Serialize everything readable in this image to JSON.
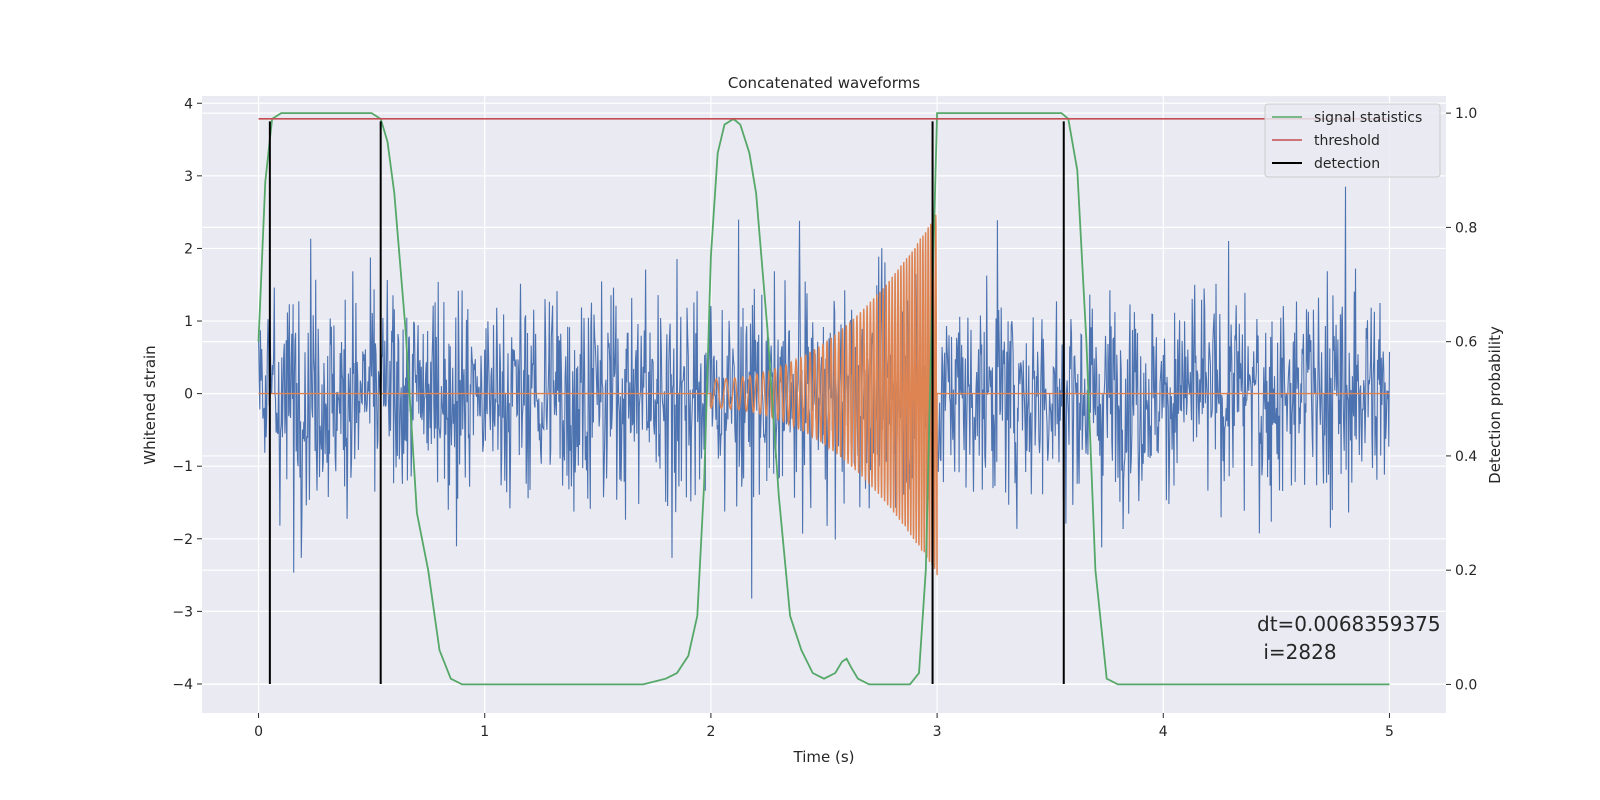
{
  "chart_data": {
    "type": "line",
    "title": "Concatenated waveforms",
    "xlabel": "Time (s)",
    "ylabel_left": "Whitened strain",
    "ylabel_right": "Detection probability",
    "xlim": [
      -0.25,
      5.25
    ],
    "ylim_left": [
      -4.4,
      4.1
    ],
    "ylim_right": [
      -0.05,
      1.03
    ],
    "xticks": [
      0,
      1,
      2,
      3,
      4,
      5
    ],
    "xtick_labels": [
      "0",
      "1",
      "2",
      "3",
      "4",
      "5"
    ],
    "yticks_left": [
      -4,
      -3,
      -2,
      -1,
      0,
      1,
      2,
      3,
      4
    ],
    "ytick_labels_left": [
      "−4",
      "−3",
      "−2",
      "−1",
      "0",
      "1",
      "2",
      "3",
      "4"
    ],
    "yticks_right": [
      0.0,
      0.2,
      0.4,
      0.6,
      0.8,
      1.0
    ],
    "ytick_labels_right": [
      "0.0",
      "0.2",
      "0.4",
      "0.6",
      "0.8",
      "1.0"
    ],
    "grid": true,
    "legend_position": "top-right",
    "colors": {
      "background": "#eaeaf2",
      "strain": "#4c72b0",
      "template": "#dd8452",
      "signal_statistics": "#55a868",
      "threshold": "#c44e52",
      "detection": "#000000"
    },
    "series": [
      {
        "name": "signal statistics",
        "axis": "right",
        "x": [
          0.0,
          0.03,
          0.06,
          0.1,
          0.15,
          0.25,
          0.4,
          0.5,
          0.54,
          0.57,
          0.6,
          0.65,
          0.7,
          0.75,
          0.8,
          0.85,
          0.9,
          1.0,
          1.2,
          1.5,
          1.7,
          1.8,
          1.85,
          1.9,
          1.94,
          1.97,
          2.0,
          2.03,
          2.06,
          2.1,
          2.13,
          2.17,
          2.2,
          2.25,
          2.3,
          2.35,
          2.4,
          2.45,
          2.5,
          2.55,
          2.58,
          2.6,
          2.62,
          2.65,
          2.7,
          2.8,
          2.88,
          2.92,
          2.95,
          2.98,
          3.0,
          3.05,
          3.1,
          3.3,
          3.5,
          3.55,
          3.58,
          3.62,
          3.66,
          3.7,
          3.75,
          3.8,
          4.0,
          4.3,
          4.5,
          4.7,
          5.0
        ],
        "y": [
          0.6,
          0.88,
          0.99,
          1.0,
          1.0,
          1.0,
          1.0,
          1.0,
          0.99,
          0.95,
          0.86,
          0.62,
          0.3,
          0.2,
          0.06,
          0.01,
          0.0,
          0.0,
          0.0,
          0.0,
          0.0,
          0.01,
          0.02,
          0.05,
          0.12,
          0.35,
          0.75,
          0.93,
          0.98,
          0.99,
          0.98,
          0.93,
          0.86,
          0.62,
          0.33,
          0.12,
          0.06,
          0.02,
          0.01,
          0.02,
          0.04,
          0.045,
          0.03,
          0.01,
          0.0,
          0.0,
          0.0,
          0.02,
          0.2,
          0.7,
          1.0,
          1.0,
          1.0,
          1.0,
          1.0,
          1.0,
          0.99,
          0.9,
          0.6,
          0.2,
          0.01,
          0.0,
          0.0,
          0.0,
          0.0,
          0.0,
          0.0
        ]
      },
      {
        "name": "threshold",
        "axis": "right",
        "x": [
          0.0,
          5.0
        ],
        "y": [
          0.99,
          0.99
        ]
      },
      {
        "name": "detection",
        "axis": "left",
        "vlines": [
          0.05,
          0.54,
          2.98,
          3.56
        ],
        "ymin": -4.0,
        "ymax": 3.75
      }
    ],
    "strain": {
      "axis": "left",
      "xrange": [
        0.0,
        5.0
      ],
      "amplitude_approx": 2.5
    },
    "template": {
      "axis": "left",
      "chirp_start": 2.0,
      "chirp_end": 3.0,
      "amplitude_start": 0.2,
      "amplitude_end": 2.5
    },
    "annotation": [
      "dt=0.0068359375",
      " i=2828"
    ]
  }
}
